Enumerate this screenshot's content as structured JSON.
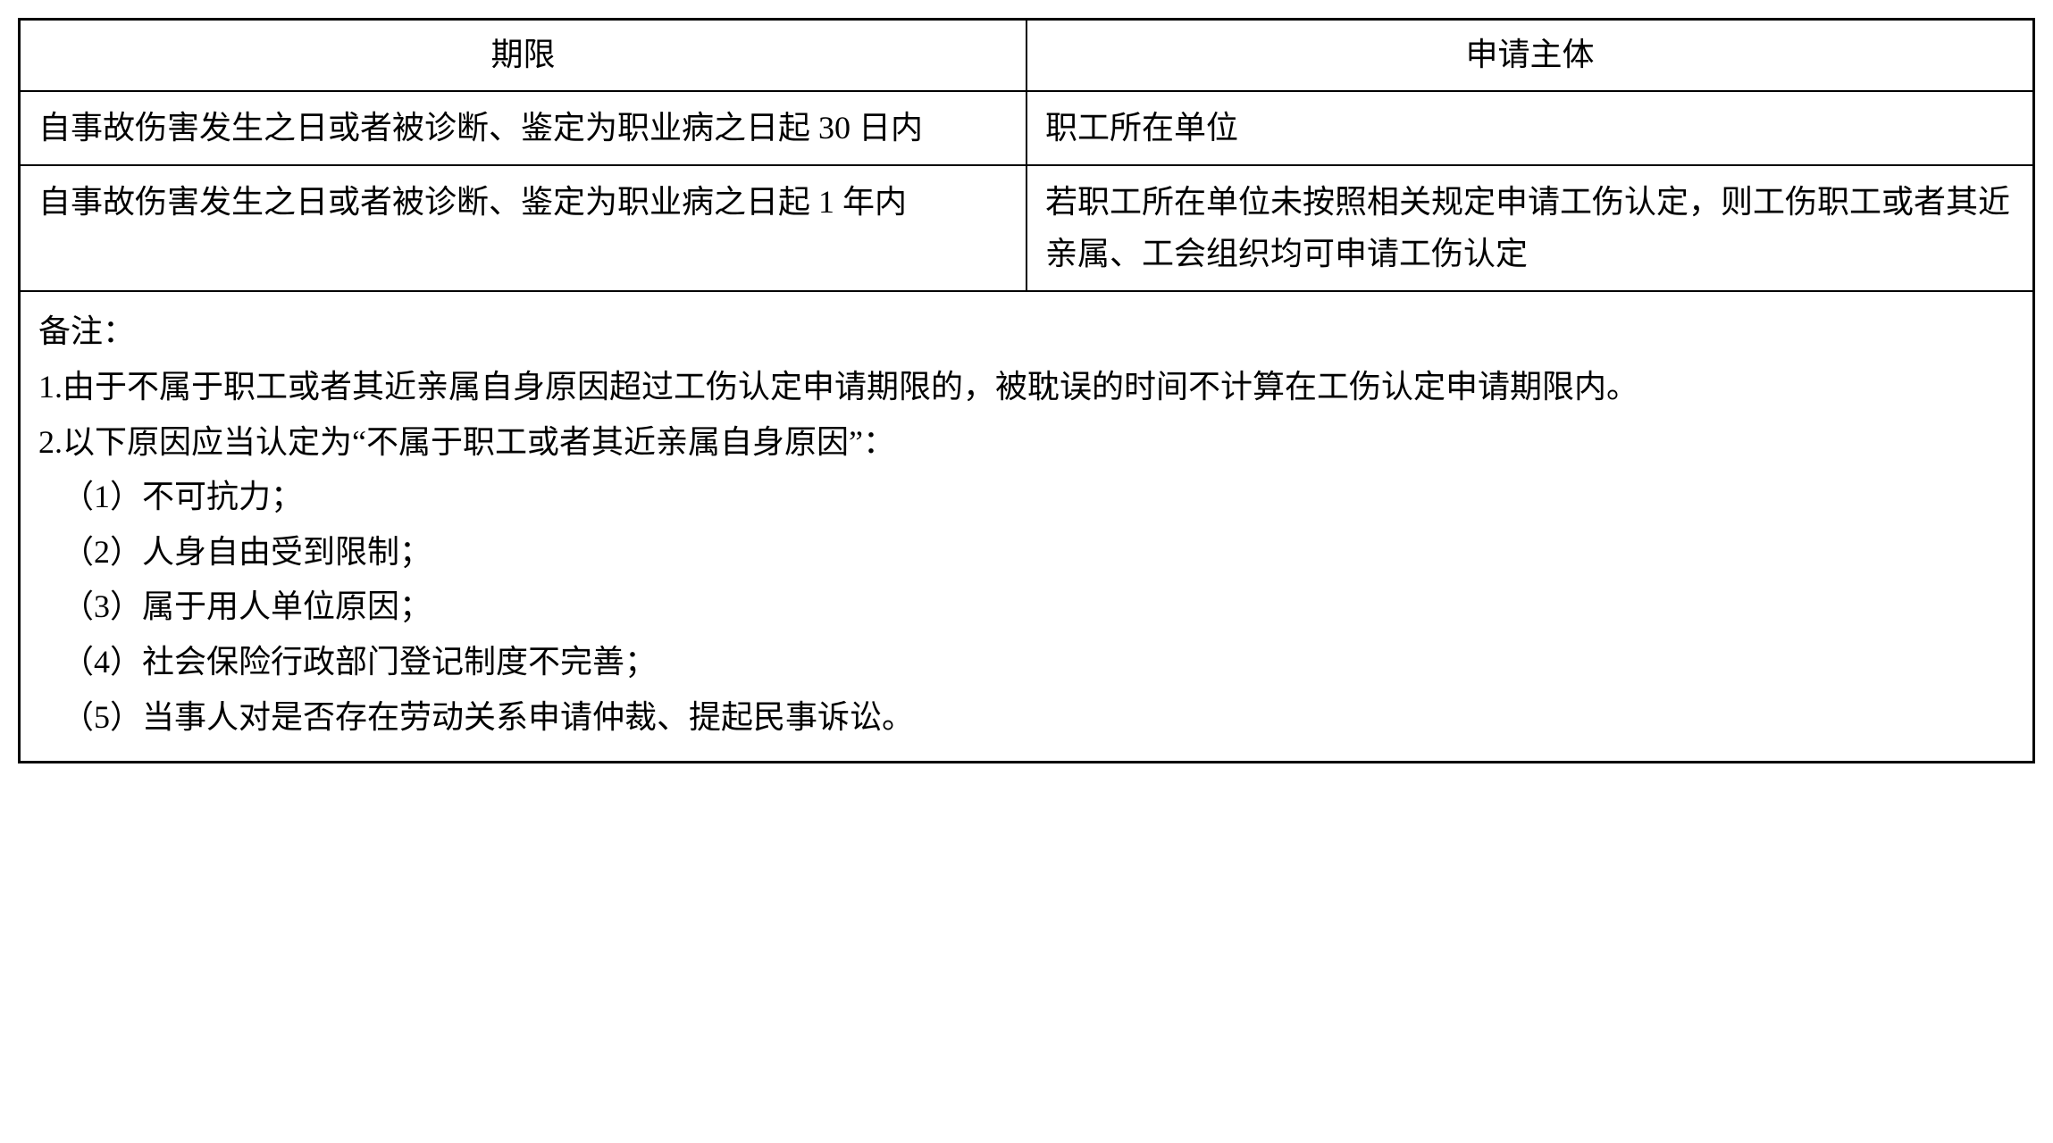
{
  "table": {
    "border_color": "#000000",
    "background_color": "#ffffff",
    "text_color": "#000000",
    "font_size": 36,
    "header": {
      "col1": "期限",
      "col2": "申请主体"
    },
    "rows": [
      {
        "col1": "自事故伤害发生之日或者被诊断、鉴定为职业病之日起 30 日内",
        "col2": "职工所在单位"
      },
      {
        "col1": "自事故伤害发生之日或者被诊断、鉴定为职业病之日起 1 年内",
        "col2": "若职工所在单位未按照相关规定申请工伤认定，则工伤职工或者其近亲属、工会组织均可申请工伤认定"
      }
    ],
    "notes": {
      "title": "备注：",
      "items": [
        "1.由于不属于职工或者其近亲属自身原因超过工伤认定申请期限的，被耽误的时间不计算在工伤认定申请期限内。",
        "2.以下原因应当认定为“不属于职工或者其近亲属自身原因”："
      ],
      "sub_items": [
        "（1）不可抗力；",
        "（2）人身自由受到限制；",
        "（3）属于用人单位原因；",
        "（4）社会保险行政部门登记制度不完善；",
        "（5）当事人对是否存在劳动关系申请仲裁、提起民事诉讼。"
      ]
    }
  }
}
